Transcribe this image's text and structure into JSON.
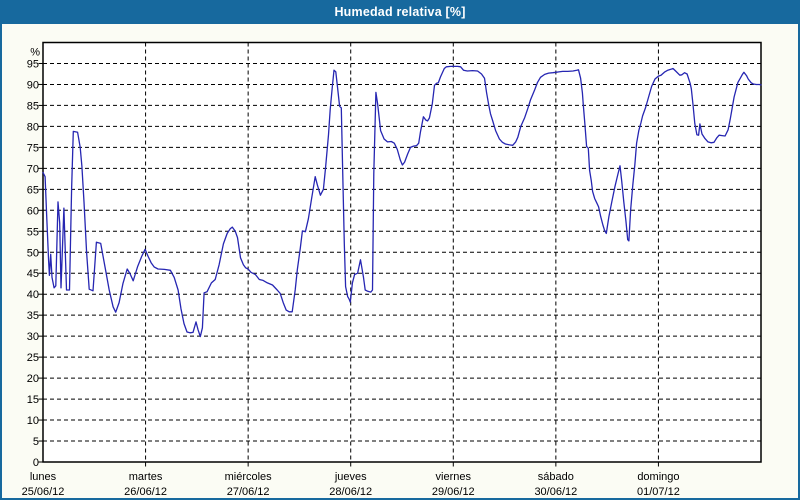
{
  "window": {
    "title": "Humedad relativa [%]"
  },
  "colors": {
    "titlebar_bg": "#17699E",
    "titlebar_text": "#FFFFFF",
    "frame_border": "#17699E",
    "content_bg": "#FBFCF4",
    "plot_bg": "#FFFFFF",
    "plot_border": "#000000",
    "grid": "#000000",
    "line": "#2626B2",
    "tick_text": "#000000"
  },
  "chart_data": {
    "type": "line",
    "title": "Humedad relativa [%]",
    "ylabel": "%",
    "xlabel": "",
    "ylim": [
      0,
      100
    ],
    "xlim_hours": [
      0,
      168
    ],
    "grid": "dashed",
    "legend": "none",
    "y_ticks": [
      0,
      5,
      10,
      15,
      20,
      25,
      30,
      35,
      40,
      45,
      50,
      55,
      60,
      65,
      70,
      75,
      80,
      85,
      90,
      95
    ],
    "x_gridlines_hours": [
      24,
      48,
      72,
      96,
      120,
      144
    ],
    "x_categories": [
      {
        "day": "lunes",
        "date": "25/06/12",
        "start_hour": 0
      },
      {
        "day": "martes",
        "date": "26/06/12",
        "start_hour": 24
      },
      {
        "day": "miércoles",
        "date": "27/06/12",
        "start_hour": 48
      },
      {
        "day": "jueves",
        "date": "28/06/12",
        "start_hour": 72
      },
      {
        "day": "viernes",
        "date": "29/06/12",
        "start_hour": 96
      },
      {
        "day": "sábado",
        "date": "30/06/12",
        "start_hour": 120
      },
      {
        "day": "domingo",
        "date": "01/07/12",
        "start_hour": 144
      }
    ],
    "series": [
      {
        "name": "Humedad relativa",
        "unit": "%",
        "x_unit": "hours since 25/06/12 00:00",
        "points": [
          [
            0,
            69
          ],
          [
            0.5,
            68
          ],
          [
            0.9,
            58
          ],
          [
            1.3,
            48
          ],
          [
            1.5,
            44.5
          ],
          [
            1.8,
            49.5
          ],
          [
            2.1,
            44
          ],
          [
            2.6,
            41.5
          ],
          [
            3.0,
            42
          ],
          [
            3.5,
            62
          ],
          [
            3.9,
            57
          ],
          [
            4.2,
            41.5
          ],
          [
            4.9,
            60.5
          ],
          [
            5.5,
            41
          ],
          [
            6.2,
            41
          ],
          [
            6.7,
            65
          ],
          [
            7.1,
            78.8
          ],
          [
            8.1,
            78.6
          ],
          [
            8.7,
            75
          ],
          [
            9.1,
            70.5
          ],
          [
            9.6,
            62
          ],
          [
            10.2,
            50
          ],
          [
            10.8,
            41.2
          ],
          [
            11.7,
            40.8
          ],
          [
            12.5,
            52.4
          ],
          [
            13.5,
            52.1
          ],
          [
            14.5,
            46.5
          ],
          [
            15.5,
            41
          ],
          [
            16.4,
            37
          ],
          [
            17.0,
            35.7
          ],
          [
            17.8,
            38
          ],
          [
            18.7,
            42.5
          ],
          [
            19.7,
            46
          ],
          [
            20.4,
            44.8
          ],
          [
            21.1,
            43.2
          ],
          [
            22.1,
            46.5
          ],
          [
            23.1,
            49
          ],
          [
            23.9,
            50.7
          ],
          [
            24.6,
            49
          ],
          [
            25.3,
            47.5
          ],
          [
            26.0,
            46.5
          ],
          [
            26.9,
            46
          ],
          [
            28.4,
            45.9
          ],
          [
            29.8,
            45.7
          ],
          [
            30.7,
            44
          ],
          [
            31.6,
            41
          ],
          [
            32.3,
            36.5
          ],
          [
            33.0,
            33
          ],
          [
            33.7,
            31
          ],
          [
            34.4,
            30.8
          ],
          [
            35.1,
            30.9
          ],
          [
            35.8,
            33.4
          ],
          [
            36.3,
            31.5
          ],
          [
            36.8,
            29.9
          ],
          [
            37.3,
            32
          ],
          [
            37.7,
            40.3
          ],
          [
            38.4,
            40.6
          ],
          [
            39.4,
            42.7
          ],
          [
            40.3,
            43.5
          ],
          [
            41.2,
            47
          ],
          [
            42.2,
            52
          ],
          [
            43.1,
            54.5
          ],
          [
            43.8,
            55.6
          ],
          [
            44.3,
            56
          ],
          [
            45.0,
            55
          ],
          [
            45.5,
            53.5
          ],
          [
            46.2,
            48.7
          ],
          [
            46.9,
            47
          ],
          [
            47.4,
            46.3
          ],
          [
            48.0,
            46
          ],
          [
            48.7,
            45.2
          ],
          [
            49.7,
            44.7
          ],
          [
            50.6,
            43.5
          ],
          [
            51.5,
            43.3
          ],
          [
            52.5,
            42.7
          ],
          [
            53.7,
            42.2
          ],
          [
            54.8,
            41
          ],
          [
            55.5,
            40.2
          ],
          [
            56.2,
            38
          ],
          [
            56.9,
            36.2
          ],
          [
            57.6,
            35.8
          ],
          [
            58.3,
            35.8
          ],
          [
            59.0,
            41
          ],
          [
            59.5,
            45.8
          ],
          [
            60.2,
            51
          ],
          [
            60.7,
            55.1
          ],
          [
            61.4,
            54.9
          ],
          [
            62.1,
            58
          ],
          [
            62.8,
            62.5
          ],
          [
            63.7,
            68
          ],
          [
            64.2,
            66
          ],
          [
            64.9,
            63.6
          ],
          [
            65.6,
            65
          ],
          [
            66.1,
            70
          ],
          [
            66.8,
            78
          ],
          [
            67.2,
            84
          ],
          [
            67.7,
            89.4
          ],
          [
            68.1,
            93.4
          ],
          [
            68.5,
            93
          ],
          [
            68.9,
            89.4
          ],
          [
            69.4,
            84.8
          ],
          [
            69.8,
            84.4
          ],
          [
            70.1,
            70.3
          ],
          [
            70.5,
            52.1
          ],
          [
            70.8,
            41.8
          ],
          [
            71.1,
            40.3
          ],
          [
            71.3,
            39.4
          ],
          [
            71.6,
            38.9
          ],
          [
            71.9,
            38.1
          ],
          [
            72.4,
            42.7
          ],
          [
            72.9,
            44.7
          ],
          [
            73.6,
            45
          ],
          [
            74.3,
            48.2
          ],
          [
            75.0,
            44
          ],
          [
            75.4,
            41
          ],
          [
            76.0,
            40.7
          ],
          [
            76.7,
            40.5
          ],
          [
            77.1,
            41
          ],
          [
            77.4,
            68.8
          ],
          [
            77.9,
            88.1
          ],
          [
            78.3,
            85.4
          ],
          [
            78.7,
            81.8
          ],
          [
            79.0,
            79
          ],
          [
            79.8,
            77
          ],
          [
            80.6,
            76.3
          ],
          [
            81.5,
            76.4
          ],
          [
            82.2,
            76
          ],
          [
            82.9,
            74.5
          ],
          [
            83.6,
            72
          ],
          [
            84.1,
            70.8
          ],
          [
            84.6,
            71.5
          ],
          [
            85.3,
            73.4
          ],
          [
            86.0,
            75
          ],
          [
            86.7,
            75.3
          ],
          [
            87.4,
            75.4
          ],
          [
            87.9,
            76
          ],
          [
            88.3,
            78.6
          ],
          [
            89.0,
            82.3
          ],
          [
            89.6,
            81.5
          ],
          [
            90.0,
            81.3
          ],
          [
            90.4,
            82
          ],
          [
            91.1,
            85.4
          ],
          [
            91.6,
            89.8
          ],
          [
            92.1,
            90.3
          ],
          [
            92.5,
            90.4
          ],
          [
            93.0,
            91.8
          ],
          [
            93.9,
            93.8
          ],
          [
            94.4,
            94.2
          ],
          [
            95.4,
            94.3
          ],
          [
            96.0,
            94.3
          ],
          [
            97.0,
            94.3
          ],
          [
            97.7,
            94.2
          ],
          [
            98.4,
            93.4
          ],
          [
            99.3,
            93.2
          ],
          [
            100.5,
            93.3
          ],
          [
            101.7,
            93.2
          ],
          [
            102.6,
            92.5
          ],
          [
            103.3,
            91.5
          ],
          [
            103.8,
            88
          ],
          [
            104.3,
            85
          ],
          [
            104.7,
            83
          ],
          [
            105.2,
            81.4
          ],
          [
            105.9,
            79
          ],
          [
            106.8,
            77
          ],
          [
            107.5,
            76.2
          ],
          [
            108.2,
            75.8
          ],
          [
            109.2,
            75.6
          ],
          [
            109.9,
            75.5
          ],
          [
            110.6,
            76.3
          ],
          [
            111.1,
            77.4
          ],
          [
            111.8,
            80
          ],
          [
            112.7,
            82.1
          ],
          [
            113.4,
            84.2
          ],
          [
            114.1,
            86.4
          ],
          [
            115.0,
            88.6
          ],
          [
            115.7,
            90.5
          ],
          [
            116.4,
            91.7
          ],
          [
            117.4,
            92.4
          ],
          [
            118.3,
            92.7
          ],
          [
            119.3,
            92.8
          ],
          [
            120.0,
            92.9
          ],
          [
            120.7,
            93
          ],
          [
            121.6,
            93.1
          ],
          [
            122.8,
            93.1
          ],
          [
            124.0,
            93.2
          ],
          [
            124.9,
            93.4
          ],
          [
            125.3,
            93.5
          ],
          [
            125.8,
            91.5
          ],
          [
            126.2,
            88
          ],
          [
            126.4,
            85.4
          ],
          [
            126.8,
            80.5
          ],
          [
            127.2,
            75.2
          ],
          [
            127.6,
            74.8
          ],
          [
            127.9,
            69.5
          ],
          [
            128.3,
            67
          ],
          [
            128.6,
            64.5
          ],
          [
            129.1,
            62.8
          ],
          [
            129.6,
            61.7
          ],
          [
            130.0,
            60.8
          ],
          [
            130.5,
            58.5
          ],
          [
            131.0,
            56.5
          ],
          [
            131.4,
            55.2
          ],
          [
            131.8,
            54.5
          ],
          [
            132.4,
            58.5
          ],
          [
            133.1,
            62
          ],
          [
            133.8,
            65.5
          ],
          [
            134.5,
            68.5
          ],
          [
            135.0,
            70.6
          ],
          [
            135.4,
            67
          ],
          [
            135.9,
            62
          ],
          [
            136.4,
            57.5
          ],
          [
            136.8,
            53
          ],
          [
            137.1,
            52.7
          ],
          [
            137.5,
            60
          ],
          [
            138.0,
            66
          ],
          [
            138.5,
            71
          ],
          [
            138.9,
            76
          ],
          [
            139.4,
            79
          ],
          [
            139.9,
            80.8
          ],
          [
            140.3,
            82.5
          ],
          [
            141.0,
            84.5
          ],
          [
            141.7,
            87
          ],
          [
            142.4,
            89.5
          ],
          [
            143.2,
            91.3
          ],
          [
            144.0,
            92
          ],
          [
            144.6,
            92.2
          ],
          [
            145.5,
            93
          ],
          [
            146.2,
            93.4
          ],
          [
            146.9,
            93.6
          ],
          [
            147.4,
            93.8
          ],
          [
            148.1,
            93.1
          ],
          [
            149.0,
            92.2
          ],
          [
            149.5,
            92.3
          ],
          [
            150.1,
            92.8
          ],
          [
            150.7,
            92.5
          ],
          [
            151.4,
            90.3
          ],
          [
            151.7,
            89
          ],
          [
            152.1,
            85.2
          ],
          [
            152.5,
            80.7
          ],
          [
            153.0,
            78
          ],
          [
            153.4,
            77.9
          ],
          [
            153.7,
            80.6
          ],
          [
            154.2,
            78.2
          ],
          [
            154.9,
            77.1
          ],
          [
            155.6,
            76.3
          ],
          [
            156.3,
            76.1
          ],
          [
            157.0,
            76.2
          ],
          [
            157.6,
            77.2
          ],
          [
            158.2,
            77.9
          ],
          [
            158.9,
            77.8
          ],
          [
            159.6,
            77.7
          ],
          [
            160.3,
            79.2
          ],
          [
            160.8,
            81.7
          ],
          [
            161.2,
            84
          ],
          [
            161.7,
            87
          ],
          [
            162.3,
            89.3
          ],
          [
            162.6,
            90.5
          ],
          [
            163.1,
            91.4
          ],
          [
            163.6,
            92.3
          ],
          [
            164.0,
            92.9
          ],
          [
            164.6,
            92.1
          ],
          [
            165.0,
            91.3
          ],
          [
            165.7,
            90.4
          ],
          [
            166.2,
            90.1
          ],
          [
            166.9,
            90
          ],
          [
            167.6,
            90
          ],
          [
            168,
            89.9
          ]
        ]
      }
    ]
  }
}
